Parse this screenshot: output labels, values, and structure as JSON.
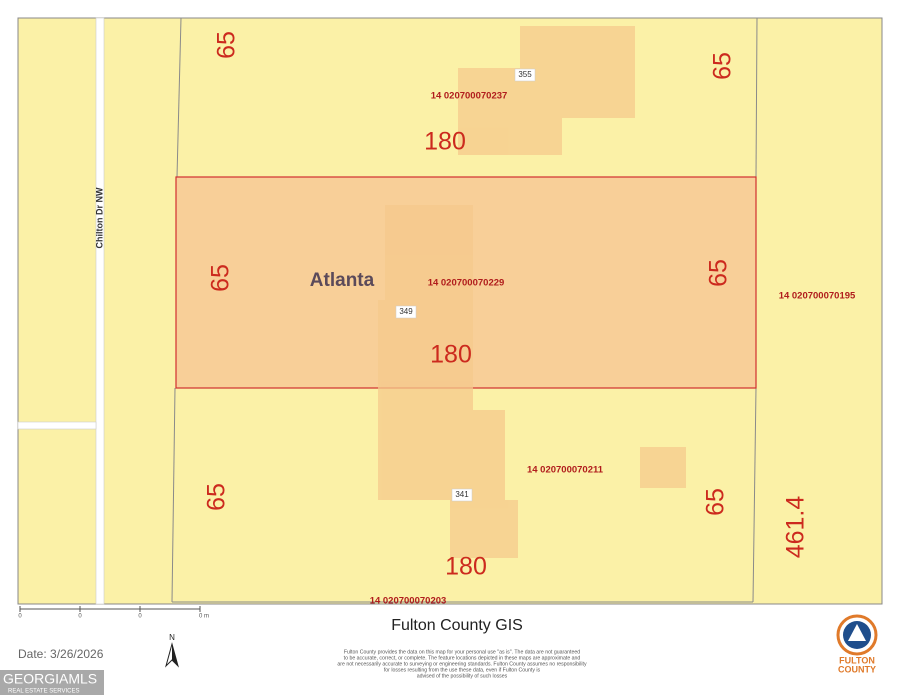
{
  "map": {
    "street": "Chilton Dr NW",
    "city": "Atlanta",
    "dimensions": [
      "65",
      "65",
      "180",
      "65",
      "65",
      "180",
      "65",
      "65",
      "180",
      "461.4"
    ],
    "parcels": [
      "14 020700070237",
      "14 020700070229",
      "14 020700070195",
      "14 020700070211",
      "14 020700070203"
    ],
    "addresses": [
      "355",
      "349",
      "341"
    ],
    "scale_bar": [
      "0",
      "0",
      "0",
      "0 m"
    ],
    "north": "N"
  },
  "footer": {
    "title": "Fulton County GIS",
    "date": "Date: 3/26/2026",
    "disclaimer": [
      "Fulton County provides the data on this map for your personal use \"as is\". The data are not guaranteed",
      "to be accurate, correct, or complete. The feature locations depicted in these maps are approximate and",
      "are not necessarily accurate to surveying or engineering standards. Fulton County assumes no responsibility",
      "for losses resulting from the use these data, even if Fulton County is",
      "advised of the possibility of such losses"
    ],
    "logo": [
      "FULTON",
      "COUNTY"
    ],
    "mls": "GEORGIAMLS",
    "mls_sub": "REAL ESTATE SERVICES"
  }
}
